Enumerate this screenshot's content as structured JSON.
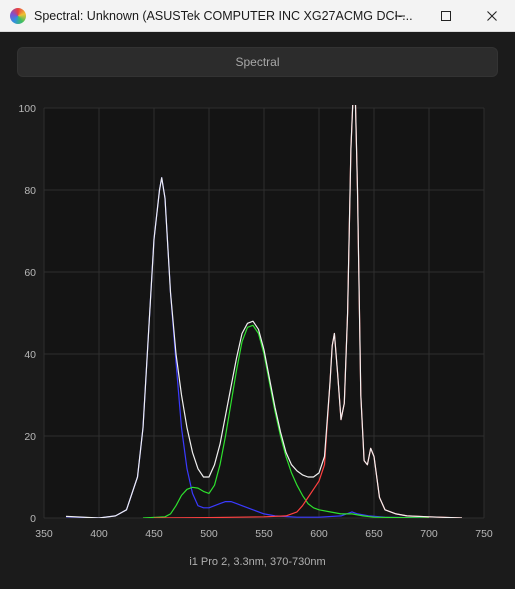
{
  "window": {
    "title": "Spectral: Unknown (ASUSTek COMPUTER INC XG27ACMG DCI-...",
    "minimize_icon": "minimize-icon",
    "maximize_icon": "maximize-icon",
    "close_icon": "close-icon"
  },
  "view_button": {
    "label": "Spectral"
  },
  "caption": "i1 Pro 2, 3.3nm, 370-730nm",
  "colors": {
    "background": "#1b1b1b",
    "plot_background": "#141414",
    "grid": "#2e2e2e",
    "white": "#f0f0f0",
    "blue": "#3a3aff",
    "green": "#2ee02e",
    "red": "#ff4040"
  },
  "chart_data": {
    "type": "line",
    "xlim": [
      350,
      750
    ],
    "ylim": [
      0,
      100
    ],
    "x_ticks": [
      350,
      400,
      450,
      500,
      550,
      600,
      650,
      700,
      750
    ],
    "y_ticks": [
      0,
      20,
      40,
      60,
      80,
      100
    ],
    "grid": true,
    "series": [
      {
        "color": "white",
        "points": [
          [
            370,
            0.4
          ],
          [
            400,
            0
          ],
          [
            415,
            0.5
          ],
          [
            425,
            2
          ],
          [
            435,
            10
          ],
          [
            440,
            22
          ],
          [
            445,
            45
          ],
          [
            450,
            68
          ],
          [
            455,
            80
          ],
          [
            457,
            83
          ],
          [
            460,
            78
          ],
          [
            465,
            55
          ],
          [
            470,
            40
          ],
          [
            475,
            30
          ],
          [
            480,
            22
          ],
          [
            485,
            16
          ],
          [
            490,
            12
          ],
          [
            495,
            10
          ],
          [
            500,
            10
          ],
          [
            505,
            13
          ],
          [
            510,
            18
          ],
          [
            515,
            25
          ],
          [
            520,
            32
          ],
          [
            525,
            39
          ],
          [
            530,
            45
          ],
          [
            535,
            47.5
          ],
          [
            540,
            48
          ],
          [
            545,
            46
          ],
          [
            550,
            41
          ],
          [
            555,
            34
          ],
          [
            560,
            27
          ],
          [
            565,
            21
          ],
          [
            570,
            16
          ],
          [
            575,
            13
          ],
          [
            580,
            11.5
          ],
          [
            585,
            10.5
          ],
          [
            590,
            10
          ],
          [
            595,
            10
          ],
          [
            600,
            11
          ],
          [
            605,
            15
          ],
          [
            610,
            33
          ],
          [
            612,
            42
          ],
          [
            614,
            45
          ],
          [
            617,
            35
          ],
          [
            620,
            24
          ],
          [
            623,
            28
          ],
          [
            626,
            50
          ],
          [
            629,
            90
          ],
          [
            631,
            103
          ],
          [
            633,
            103
          ],
          [
            635,
            80
          ],
          [
            638,
            30
          ],
          [
            641,
            14
          ],
          [
            644,
            13
          ],
          [
            647,
            17
          ],
          [
            650,
            15
          ],
          [
            655,
            5
          ],
          [
            660,
            2
          ],
          [
            670,
            1
          ],
          [
            680,
            0.5
          ],
          [
            700,
            0.3
          ],
          [
            730,
            0
          ]
        ]
      },
      {
        "color": "blue",
        "points": [
          [
            370,
            0.3
          ],
          [
            400,
            0
          ],
          [
            415,
            0.5
          ],
          [
            425,
            2
          ],
          [
            435,
            10
          ],
          [
            440,
            22
          ],
          [
            445,
            45
          ],
          [
            450,
            68
          ],
          [
            455,
            80
          ],
          [
            457,
            83
          ],
          [
            460,
            78
          ],
          [
            465,
            55
          ],
          [
            470,
            38
          ],
          [
            475,
            22
          ],
          [
            480,
            12
          ],
          [
            485,
            6
          ],
          [
            490,
            3
          ],
          [
            495,
            2.5
          ],
          [
            500,
            2.5
          ],
          [
            505,
            3
          ],
          [
            510,
            3.5
          ],
          [
            515,
            4
          ],
          [
            520,
            4
          ],
          [
            525,
            3.5
          ],
          [
            530,
            3
          ],
          [
            540,
            2
          ],
          [
            550,
            1
          ],
          [
            560,
            0.5
          ],
          [
            580,
            0.2
          ],
          [
            600,
            0.2
          ],
          [
            620,
            0.5
          ],
          [
            630,
            1.5
          ],
          [
            635,
            1
          ],
          [
            645,
            0.5
          ],
          [
            660,
            0.2
          ],
          [
            700,
            0
          ]
        ]
      },
      {
        "color": "green",
        "points": [
          [
            440,
            0
          ],
          [
            460,
            0.3
          ],
          [
            465,
            1
          ],
          [
            470,
            3
          ],
          [
            475,
            5.5
          ],
          [
            480,
            7
          ],
          [
            485,
            7.5
          ],
          [
            490,
            7.3
          ],
          [
            495,
            6.5
          ],
          [
            500,
            6
          ],
          [
            505,
            8
          ],
          [
            510,
            13
          ],
          [
            515,
            20
          ],
          [
            520,
            28
          ],
          [
            525,
            36
          ],
          [
            530,
            43
          ],
          [
            535,
            46.5
          ],
          [
            540,
            47
          ],
          [
            545,
            45
          ],
          [
            550,
            40
          ],
          [
            555,
            33
          ],
          [
            560,
            26
          ],
          [
            565,
            20
          ],
          [
            570,
            15
          ],
          [
            575,
            11
          ],
          [
            580,
            8
          ],
          [
            585,
            5.5
          ],
          [
            590,
            3.5
          ],
          [
            595,
            2.5
          ],
          [
            600,
            2
          ],
          [
            610,
            1.5
          ],
          [
            620,
            1
          ],
          [
            630,
            1
          ],
          [
            640,
            0.5
          ],
          [
            650,
            0.2
          ],
          [
            700,
            0
          ]
        ]
      },
      {
        "color": "red",
        "points": [
          [
            450,
            0
          ],
          [
            500,
            0.1
          ],
          [
            550,
            0.3
          ],
          [
            570,
            0.5
          ],
          [
            580,
            1.5
          ],
          [
            585,
            3
          ],
          [
            590,
            5
          ],
          [
            595,
            7
          ],
          [
            600,
            9
          ],
          [
            605,
            13
          ],
          [
            610,
            33
          ],
          [
            612,
            42
          ],
          [
            614,
            45
          ],
          [
            617,
            35
          ],
          [
            620,
            24
          ],
          [
            623,
            28
          ],
          [
            626,
            50
          ],
          [
            629,
            90
          ],
          [
            631,
            103
          ],
          [
            633,
            103
          ],
          [
            635,
            80
          ],
          [
            638,
            30
          ],
          [
            641,
            14
          ],
          [
            644,
            13
          ],
          [
            647,
            17
          ],
          [
            650,
            15
          ],
          [
            655,
            5
          ],
          [
            660,
            2
          ],
          [
            670,
            1
          ],
          [
            680,
            0.5
          ],
          [
            700,
            0.3
          ],
          [
            730,
            0
          ]
        ]
      }
    ]
  }
}
